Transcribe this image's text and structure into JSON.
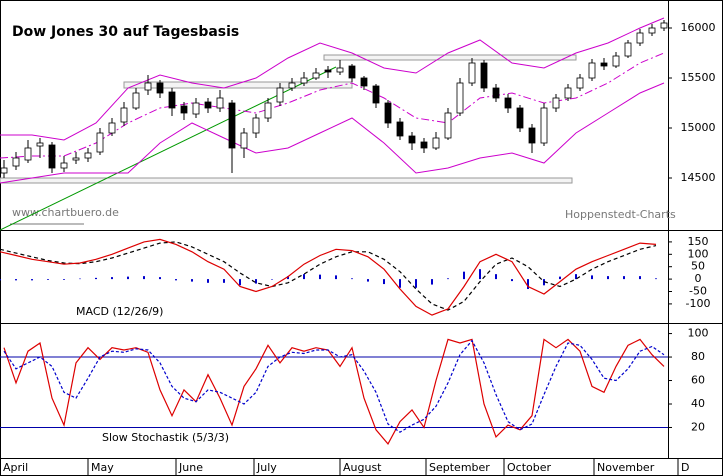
{
  "chart_data": [
    {
      "type": "candlestick",
      "title": "Dow Jones 30 auf Tagesbasis",
      "source": "www.chartbuero.de",
      "credit": "Hoppenstedt-Charts",
      "up_color": "#ffffff",
      "down_color": "#000000",
      "x": [
        1,
        4,
        7,
        10,
        13,
        16,
        19,
        22,
        25,
        28,
        31,
        34,
        37,
        40,
        43,
        46,
        49,
        52,
        55,
        58,
        61,
        64,
        67,
        70,
        73,
        76,
        79,
        82,
        85,
        88,
        91,
        94,
        97,
        100,
        103,
        106,
        109,
        112,
        115,
        118,
        121,
        124,
        127,
        130,
        133,
        136,
        139,
        142,
        145,
        148,
        151,
        154,
        157,
        160,
        163,
        166
      ],
      "open": [
        14550,
        14620,
        14680,
        14820,
        14830,
        14600,
        14680,
        14700,
        14760,
        14950,
        15060,
        15200,
        15380,
        15450,
        15360,
        15220,
        15140,
        15260,
        15200,
        15250,
        14800,
        14950,
        15100,
        15260,
        15400,
        15450,
        15500,
        15580,
        15560,
        15620,
        15500,
        15420,
        15250,
        15060,
        14920,
        14860,
        14800,
        14900,
        15150,
        15450,
        15650,
        15400,
        15300,
        15200,
        15000,
        14850,
        15200,
        15300,
        15400,
        15500,
        15650,
        15620,
        15720,
        15850,
        15950,
        16000
      ],
      "high": [
        14680,
        14760,
        14880,
        14900,
        14860,
        14720,
        14760,
        14800,
        15000,
        15100,
        15260,
        15400,
        15530,
        15480,
        15400,
        15260,
        15300,
        15300,
        15380,
        15280,
        15000,
        15140,
        15300,
        15450,
        15500,
        15560,
        15600,
        15620,
        15680,
        15640,
        15520,
        15440,
        15280,
        15100,
        14960,
        14900,
        14960,
        15200,
        15500,
        15700,
        15680,
        15440,
        15340,
        15230,
        15040,
        15250,
        15340,
        15440,
        15540,
        15690,
        15700,
        15760,
        15880,
        15990,
        16040,
        16080
      ],
      "low": [
        14500,
        14580,
        14650,
        14700,
        14550,
        14560,
        14640,
        14660,
        14730,
        14920,
        15020,
        15180,
        15330,
        15300,
        15120,
        15080,
        15100,
        15150,
        15160,
        14550,
        14700,
        14900,
        15060,
        15220,
        15370,
        15420,
        15480,
        15500,
        15530,
        15460,
        15380,
        15200,
        15000,
        14880,
        14780,
        14750,
        14780,
        14880,
        15120,
        15420,
        15360,
        15260,
        15150,
        14960,
        14750,
        14820,
        15160,
        15270,
        15370,
        15470,
        15580,
        15600,
        15700,
        15820,
        15920,
        15970
      ],
      "close": [
        14600,
        14700,
        14800,
        14850,
        14600,
        14650,
        14700,
        14750,
        14950,
        15050,
        15200,
        15350,
        15450,
        15350,
        15200,
        15150,
        15250,
        15200,
        15300,
        14800,
        14950,
        15100,
        15250,
        15400,
        15450,
        15500,
        15550,
        15560,
        15600,
        15500,
        15420,
        15250,
        15050,
        14920,
        14850,
        14800,
        14900,
        15150,
        15450,
        15650,
        15400,
        15300,
        15200,
        15000,
        14850,
        15200,
        15300,
        15400,
        15500,
        15650,
        15620,
        15720,
        15850,
        15950,
        16000,
        16050
      ],
      "overlays": [
        {
          "x": [
            0,
            8,
            16,
            24,
            32,
            40,
            48,
            56,
            64,
            72,
            80,
            88,
            96,
            104,
            112,
            120,
            128,
            136,
            144,
            152,
            160,
            166
          ],
          "values": [
            14930,
            14930,
            14880,
            15050,
            15400,
            15530,
            15450,
            15400,
            15500,
            15700,
            15850,
            15750,
            15600,
            15550,
            15750,
            15880,
            15650,
            15600,
            15750,
            15850,
            16000,
            16100
          ],
          "color": "#cc00cc",
          "dash": "none"
        },
        {
          "x": [
            0,
            8,
            16,
            24,
            32,
            40,
            48,
            56,
            64,
            72,
            80,
            88,
            96,
            104,
            112,
            120,
            128,
            136,
            144,
            152,
            160,
            166
          ],
          "values": [
            14700,
            14720,
            14720,
            14850,
            15050,
            15200,
            15250,
            15200,
            15150,
            15250,
            15380,
            15450,
            15300,
            15100,
            15050,
            15300,
            15350,
            15250,
            15300,
            15450,
            15650,
            15750
          ],
          "color": "#cc00cc",
          "dash": "8,3,2,3"
        },
        {
          "x": [
            0,
            8,
            16,
            24,
            32,
            40,
            48,
            56,
            64,
            72,
            80,
            88,
            96,
            104,
            112,
            120,
            128,
            136,
            144,
            152,
            160,
            166
          ],
          "values": [
            14450,
            14500,
            14550,
            14550,
            14550,
            14850,
            15050,
            14900,
            14750,
            14800,
            14950,
            15100,
            14850,
            14550,
            14600,
            14700,
            14750,
            14650,
            14950,
            15150,
            15350,
            15450
          ],
          "color": "#cc00cc",
          "dash": "none"
        }
      ],
      "trendlines": [
        {
          "x": [
            0,
            84
          ],
          "y": [
            13980,
            15610
          ],
          "color": "#009900"
        }
      ],
      "ranges": [
        {
          "x": [
            31,
            88
          ],
          "y": [
            15400,
            15460
          ]
        },
        {
          "x": [
            81,
            144
          ],
          "y": [
            15680,
            15730
          ]
        },
        {
          "x": [
            0,
            143
          ],
          "y": [
            14450,
            14500
          ]
        }
      ],
      "xlim": [
        0,
        167
      ],
      "ylim": [
        13980,
        16280
      ],
      "yticks": [
        14500,
        15000,
        15500,
        16000
      ]
    },
    {
      "type": "macd",
      "label": "MACD (12/26/9)",
      "x": [
        0,
        4,
        8,
        12,
        16,
        20,
        24,
        28,
        32,
        36,
        40,
        44,
        48,
        52,
        56,
        60,
        64,
        68,
        72,
        76,
        80,
        84,
        88,
        92,
        96,
        100,
        104,
        108,
        112,
        116,
        120,
        124,
        128,
        132,
        136,
        140,
        144,
        148,
        152,
        156,
        160,
        164
      ],
      "series": [
        {
          "color": "#0000cc",
          "style": "bars",
          "values": [
            -5,
            -5,
            -5,
            -3,
            -3,
            2,
            5,
            8,
            10,
            12,
            8,
            -5,
            -10,
            -15,
            -15,
            -25,
            -18,
            0,
            12,
            20,
            18,
            15,
            3,
            -10,
            -20,
            -35,
            -35,
            -22,
            3,
            30,
            40,
            20,
            -8,
            -40,
            -25,
            10,
            20,
            15,
            12,
            12,
            12,
            3
          ]
        },
        {
          "color": "#000000",
          "style": "line",
          "dash": "4,3",
          "values": [
            120,
            105,
            90,
            75,
            65,
            62,
            70,
            85,
            105,
            125,
            145,
            150,
            130,
            100,
            70,
            25,
            -15,
            -30,
            -15,
            20,
            60,
            90,
            110,
            110,
            80,
            30,
            -40,
            -100,
            -125,
            -90,
            -10,
            60,
            85,
            50,
            -10,
            -30,
            0,
            40,
            70,
            95,
            120,
            135
          ]
        },
        {
          "color": "#dd0000",
          "style": "line",
          "dash": "none",
          "values": [
            110,
            95,
            80,
            70,
            60,
            65,
            80,
            100,
            125,
            150,
            160,
            140,
            110,
            70,
            40,
            -30,
            -50,
            -30,
            10,
            60,
            95,
            120,
            115,
            90,
            40,
            -40,
            -110,
            -145,
            -120,
            -30,
            70,
            100,
            70,
            -30,
            -60,
            -10,
            40,
            70,
            95,
            120,
            145,
            140
          ]
        }
      ],
      "xlim": [
        0,
        167
      ],
      "ylim": [
        -177,
        198
      ],
      "yticks": [
        -100,
        -50,
        0,
        50,
        100,
        150
      ]
    },
    {
      "type": "stochastic",
      "label": "Slow Stochastik (5/3/3)",
      "x": [
        1,
        4,
        7,
        10,
        13,
        16,
        19,
        22,
        25,
        28,
        31,
        34,
        37,
        40,
        43,
        46,
        49,
        52,
        55,
        58,
        61,
        64,
        67,
        70,
        73,
        76,
        79,
        82,
        85,
        88,
        91,
        94,
        97,
        100,
        103,
        106,
        109,
        112,
        115,
        118,
        121,
        124,
        127,
        130,
        133,
        136,
        139,
        142,
        145,
        148,
        151,
        154,
        157,
        160,
        163,
        166
      ],
      "levels": [
        80,
        20
      ],
      "level_color": "#0000aa",
      "series": [
        {
          "color": "#dd0000",
          "dash": "none",
          "values": [
            88,
            58,
            85,
            92,
            45,
            22,
            75,
            88,
            78,
            88,
            86,
            88,
            84,
            52,
            30,
            52,
            42,
            65,
            45,
            22,
            55,
            70,
            90,
            75,
            88,
            85,
            88,
            86,
            72,
            88,
            45,
            18,
            6,
            25,
            35,
            20,
            60,
            95,
            92,
            95,
            40,
            12,
            22,
            18,
            30,
            95,
            88,
            95,
            85,
            55,
            50,
            72,
            90,
            95,
            82,
            72
          ]
        },
        {
          "color": "#0000cc",
          "dash": "3,2",
          "values": [
            85,
            70,
            75,
            80,
            72,
            50,
            45,
            62,
            80,
            85,
            84,
            87,
            86,
            75,
            55,
            45,
            42,
            52,
            50,
            45,
            40,
            50,
            72,
            80,
            84,
            83,
            86,
            86,
            80,
            82,
            68,
            50,
            23,
            16,
            22,
            27,
            38,
            58,
            82,
            94,
            75,
            48,
            25,
            18,
            23,
            48,
            72,
            92,
            90,
            78,
            62,
            60,
            70,
            85,
            89,
            82
          ]
        }
      ],
      "xlim": [
        0,
        167
      ],
      "ylim": [
        -6,
        109
      ],
      "yticks": [
        20,
        40,
        60,
        80,
        100
      ],
      "xticks": [
        {
          "value": 0,
          "label": "April"
        },
        {
          "value": 22,
          "label": "May"
        },
        {
          "value": 44,
          "label": "June"
        },
        {
          "value": 63.5,
          "label": "July"
        },
        {
          "value": 85,
          "label": "August"
        },
        {
          "value": 106.5,
          "label": "September"
        },
        {
          "value": 126,
          "label": "October"
        },
        {
          "value": 148.5,
          "label": "November"
        },
        {
          "value": 169.5,
          "label": "D"
        }
      ]
    }
  ]
}
